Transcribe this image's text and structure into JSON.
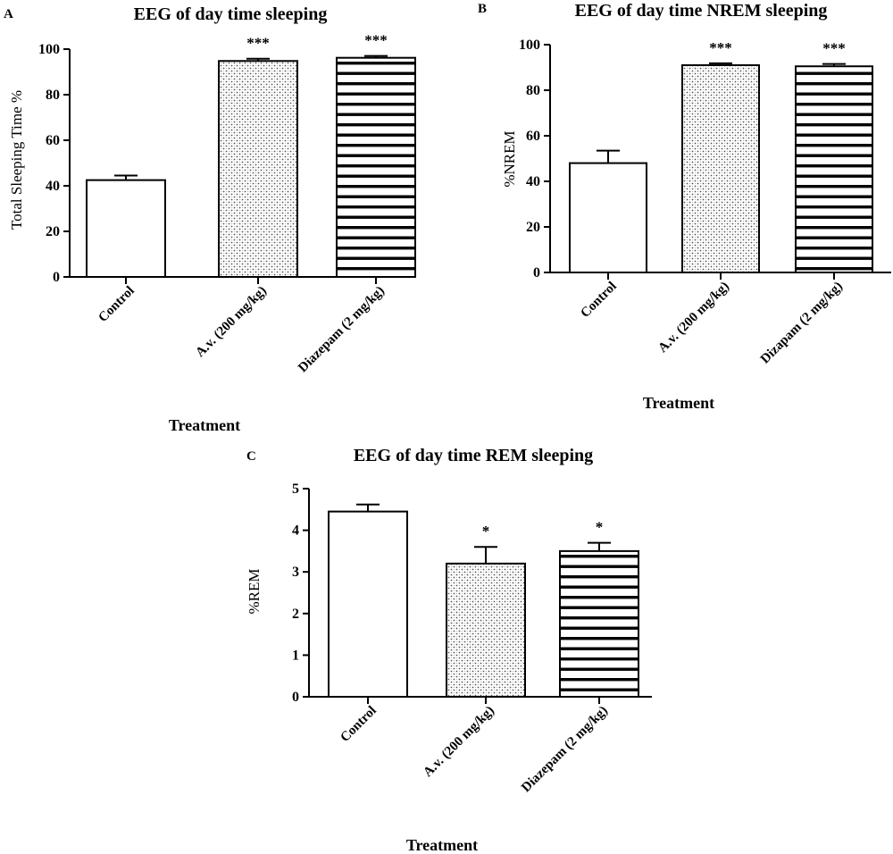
{
  "chart_data": [
    {
      "type": "bar",
      "panel_label": "A",
      "title": "EEG of day time sleeping",
      "xlabel": "Treatment",
      "ylabel": "Total Sleeping Time %",
      "ylim": [
        0,
        100
      ],
      "yticks": [
        "0",
        "20",
        "40",
        "60",
        "80",
        "100"
      ],
      "categories": [
        "Control",
        "A.v. (200 mg/kg)",
        "Diazepam (2 mg/kg)"
      ],
      "values": [
        42.5,
        94.8,
        96.2
      ],
      "errors": [
        2.0,
        1.0,
        0.8
      ],
      "significance": [
        "",
        "***",
        "***"
      ],
      "fills": [
        "white",
        "dotted",
        "horizontal-stripes"
      ],
      "grid": false
    },
    {
      "type": "bar",
      "panel_label": "B",
      "title": "EEG of day time NREM sleeping",
      "xlabel": "Treatment",
      "ylabel": "%NREM",
      "ylim": [
        0,
        100
      ],
      "yticks": [
        "0",
        "20",
        "40",
        "60",
        "80",
        "100"
      ],
      "categories": [
        "Control",
        "A.v. (200 mg/kg)",
        "Dizapam (2 mg/kg)"
      ],
      "values": [
        48.0,
        91.0,
        90.5
      ],
      "errors": [
        5.5,
        0.8,
        1.0
      ],
      "significance": [
        "",
        "***",
        "***"
      ],
      "fills": [
        "white",
        "dotted",
        "horizontal-stripes"
      ],
      "grid": false
    },
    {
      "type": "bar",
      "panel_label": "C",
      "title": "EEG of day time REM sleeping",
      "xlabel": "Treatment",
      "ylabel": "%REM",
      "ylim": [
        0,
        5
      ],
      "yticks": [
        "0",
        "1",
        "2",
        "3",
        "4",
        "5"
      ],
      "categories": [
        "Control",
        "A.v. (200 mg/kg)",
        "Diazepam (2 mg/kg)"
      ],
      "values": [
        4.45,
        3.2,
        3.5
      ],
      "errors": [
        0.17,
        0.4,
        0.2
      ],
      "significance": [
        "",
        "*",
        "*"
      ],
      "fills": [
        "white",
        "dotted",
        "horizontal-stripes"
      ],
      "grid": false
    }
  ]
}
